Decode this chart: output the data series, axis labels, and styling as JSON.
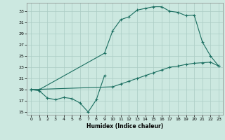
{
  "xlabel": "Humidex (Indice chaleur)",
  "bg_color": "#cce8e0",
  "line_color": "#1a6e60",
  "grid_color": "#aaccc4",
  "xlim": [
    -0.5,
    23.5
  ],
  "ylim": [
    14.5,
    34.5
  ],
  "yticks": [
    15,
    17,
    19,
    21,
    23,
    25,
    27,
    29,
    31,
    33
  ],
  "xticks": [
    0,
    1,
    2,
    3,
    4,
    5,
    6,
    7,
    8,
    9,
    10,
    11,
    12,
    13,
    14,
    15,
    16,
    17,
    18,
    19,
    20,
    21,
    22,
    23
  ],
  "series": [
    {
      "x": [
        0,
        1,
        2,
        3,
        4,
        5,
        6,
        7,
        8,
        9
      ],
      "y": [
        19.0,
        18.8,
        17.5,
        17.2,
        17.6,
        17.4,
        16.6,
        15.0,
        17.2,
        21.5
      ]
    },
    {
      "x": [
        0,
        1,
        9,
        10,
        11,
        12,
        13,
        14,
        15,
        16,
        17,
        18,
        19,
        20,
        21,
        22,
        23
      ],
      "y": [
        19.0,
        19.0,
        25.5,
        29.5,
        31.5,
        32.0,
        33.2,
        33.5,
        33.8,
        33.8,
        33.0,
        32.8,
        32.2,
        32.3,
        27.5,
        25.0,
        23.2
      ]
    },
    {
      "x": [
        0,
        10,
        11,
        12,
        13,
        14,
        15,
        16,
        17,
        18,
        19,
        20,
        21,
        22,
        23
      ],
      "y": [
        19.0,
        19.5,
        20.0,
        20.5,
        21.0,
        21.5,
        22.0,
        22.5,
        23.0,
        23.2,
        23.5,
        23.7,
        23.8,
        23.9,
        23.2
      ]
    }
  ]
}
